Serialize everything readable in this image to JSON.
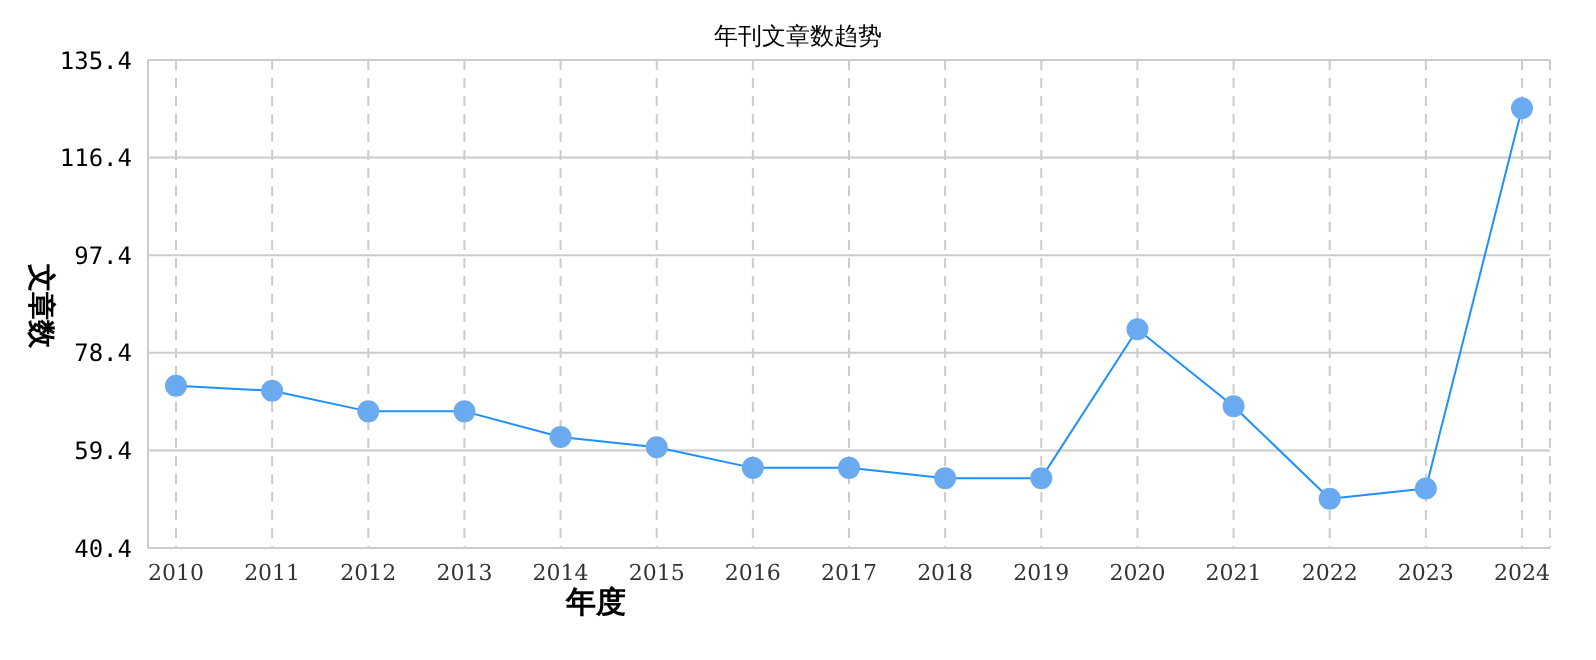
{
  "chart_data": {
    "type": "line",
    "title": "年刊文章数趋势",
    "xlabel": "年度",
    "ylabel": "文章数",
    "categories": [
      "2010",
      "2011",
      "2012",
      "2013",
      "2014",
      "2015",
      "2016",
      "2017",
      "2018",
      "2019",
      "2020",
      "2021",
      "2022",
      "2023",
      "2024"
    ],
    "series": [
      {
        "color": "#1e90ff",
        "values": [
          72,
          71,
          67,
          67,
          62,
          60,
          56,
          56,
          54,
          54,
          83,
          68,
          50,
          52,
          126
        ]
      }
    ],
    "ylim": [
      40.4,
      135.4
    ],
    "yticks": [
      40.4,
      59.4,
      78.4,
      97.4,
      116.4,
      135.4
    ],
    "grid": true,
    "marker": "circle",
    "line_style": "solid"
  }
}
